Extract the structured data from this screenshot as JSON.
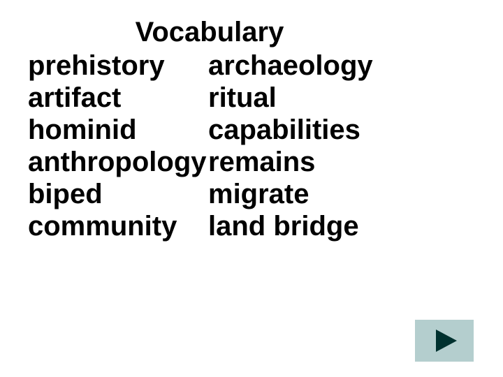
{
  "title": "Vocabulary",
  "font_size_title": 40,
  "font_size_terms": 40,
  "line_height": 46,
  "text_color": "#000000",
  "background_color": "#ffffff",
  "terms": {
    "row1": {
      "left": "prehistory",
      "right": "archaeology"
    },
    "row2": {
      "left": "artifact",
      "right": "ritual"
    },
    "row3": {
      "left": "hominid",
      "right": "capabilities"
    },
    "row4": {
      "left": "anthropology",
      "right": "remains"
    },
    "row5": {
      "left": "biped",
      "right": "migrate"
    },
    "row6": {
      "left": "community",
      "right": "land bridge"
    }
  },
  "nav_button": {
    "background_color": "#b4cece",
    "triangle_color": "#00312f"
  }
}
